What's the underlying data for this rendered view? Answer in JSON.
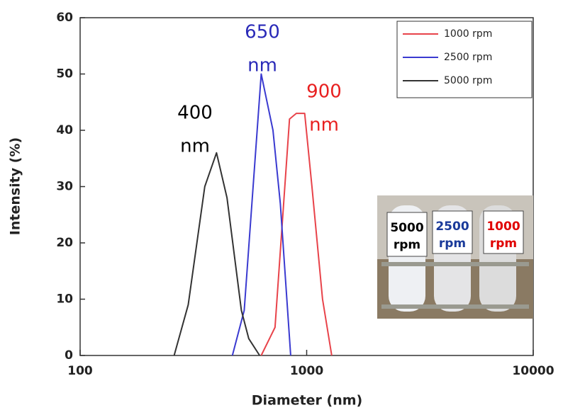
{
  "chart_data": {
    "type": "line",
    "xlabel": "Diameter (nm)",
    "ylabel": "Intensity (%)",
    "xscale": "log",
    "xlim": [
      100,
      10000
    ],
    "xticks": [
      100,
      1000,
      10000
    ],
    "ylim": [
      0,
      60
    ],
    "yticks": [
      0,
      10,
      20,
      30,
      40,
      50,
      60
    ],
    "legend": "upper right",
    "series": [
      {
        "name": "1000 rpm",
        "color": "#e8434a",
        "x": [
          630,
          725,
          840,
          900,
          980,
          1055,
          1175,
          1290
        ],
        "values": [
          0,
          5,
          42,
          43,
          43,
          30,
          10,
          0
        ]
      },
      {
        "name": "2500 rpm",
        "color": "#3a3ad0",
        "x": [
          470,
          530,
          630,
          710,
          765,
          850
        ],
        "values": [
          0,
          8,
          50,
          40,
          27,
          0
        ]
      },
      {
        "name": "5000 rpm",
        "color": "#333333",
        "x": [
          260,
          300,
          355,
          400,
          445,
          515,
          555,
          620
        ],
        "values": [
          0,
          9,
          30,
          36,
          28,
          8,
          3,
          0
        ]
      }
    ],
    "annotations": [
      {
        "lines": [
          "650",
          "nm"
        ],
        "color": "#2a2ab8"
      },
      {
        "lines": [
          "900",
          "nm"
        ],
        "color": "#e82020"
      },
      {
        "lines": [
          "400",
          "nm"
        ],
        "color": "#000000"
      }
    ],
    "inset": [
      {
        "lines": [
          "5000",
          "rpm"
        ],
        "color": "#000000"
      },
      {
        "lines": [
          "2500",
          "rpm"
        ],
        "color": "#1a3a9a"
      },
      {
        "lines": [
          "1000",
          "rpm"
        ],
        "color": "#e00000"
      }
    ]
  }
}
